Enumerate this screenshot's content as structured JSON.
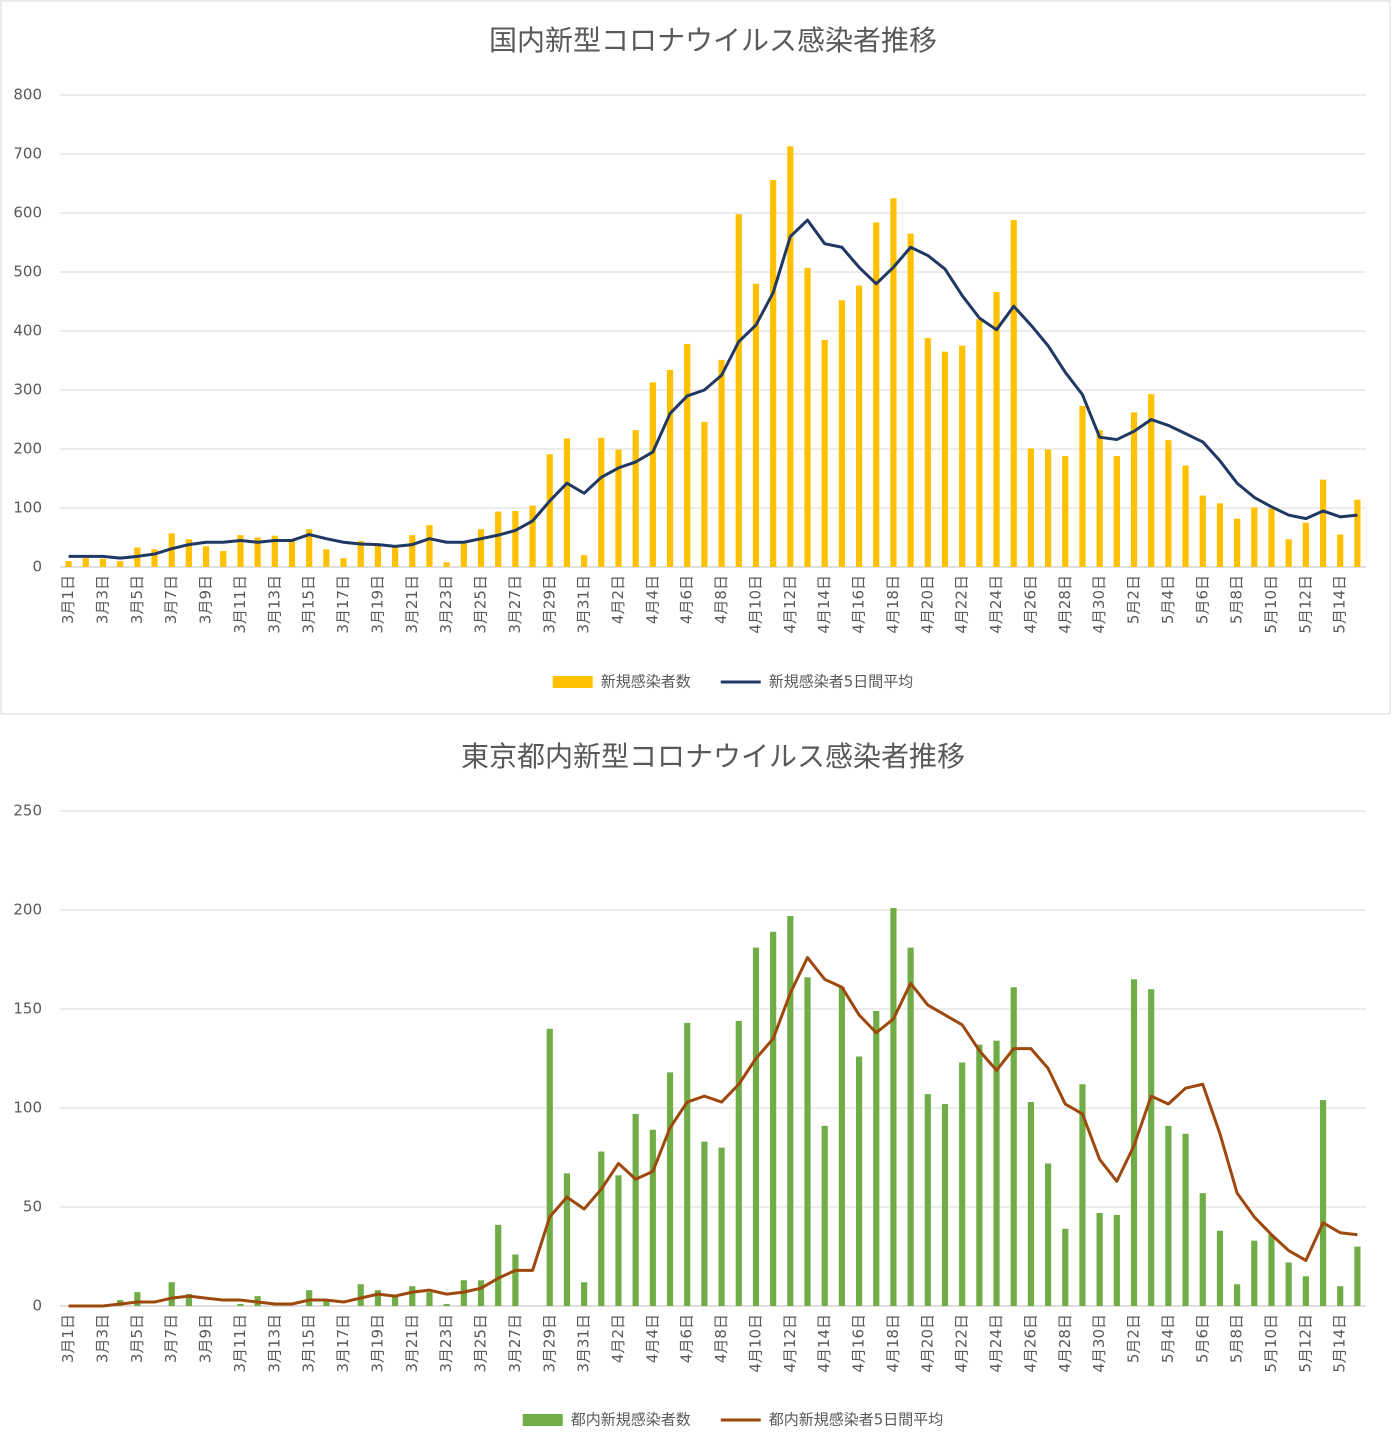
{
  "chart_data": [
    {
      "type": "bar",
      "title": "国内新型コロナウイルス感染者推移",
      "categories": [
        "3月1日",
        null,
        "3月3日",
        null,
        "3月5日",
        null,
        "3月7日",
        null,
        "3月9日",
        null,
        "3月11日",
        null,
        "3月13日",
        null,
        "3月15日",
        null,
        "3月17日",
        null,
        "3月19日",
        null,
        "3月21日",
        null,
        "3月23日",
        null,
        "3月25日",
        null,
        "3月27日",
        null,
        "3月29日",
        null,
        "3月31日",
        null,
        "4月2日",
        null,
        "4月4日",
        null,
        "4月6日",
        null,
        "4月8日",
        null,
        "4月10日",
        null,
        "4月12日",
        null,
        "4月14日",
        null,
        "4月16日",
        null,
        "4月18日",
        null,
        "4月20日",
        null,
        "4月22日",
        null,
        "4月24日",
        null,
        "4月26日",
        null,
        "4月28日",
        null,
        "4月30日",
        null,
        "5月2日",
        null,
        "5月4日",
        null,
        "5月6日",
        null,
        "5月8日",
        null,
        "5月10日",
        null,
        "5月12日",
        null,
        "5月14日",
        null
      ],
      "series": [
        {
          "name": "新規感染者数",
          "type": "bar",
          "color": "#FFC000",
          "values": [
            10,
            15,
            14,
            10,
            33,
            30,
            57,
            47,
            35,
            27,
            54,
            50,
            53,
            44,
            64,
            30,
            15,
            44,
            38,
            37,
            54,
            71,
            8,
            40,
            64,
            94,
            95,
            104,
            191,
            218,
            20,
            219,
            199,
            232,
            313,
            334,
            378,
            246,
            351,
            598,
            480,
            656,
            713,
            507,
            385,
            452,
            477,
            584,
            625,
            565,
            388,
            365,
            375,
            420,
            466,
            588,
            201,
            199,
            188,
            273,
            232,
            188,
            262,
            293,
            215,
            172,
            121,
            108,
            82,
            101,
            99,
            47,
            75,
            148,
            55,
            114
          ]
        },
        {
          "name": "新規感染者5日間平均",
          "type": "line",
          "color": "#203864",
          "values": [
            18,
            18,
            18,
            15,
            18,
            22,
            31,
            38,
            42,
            42,
            45,
            42,
            45,
            45,
            55,
            48,
            42,
            39,
            38,
            35,
            38,
            48,
            42,
            42,
            48,
            54,
            62,
            78,
            112,
            142,
            125,
            152,
            168,
            178,
            195,
            260,
            290,
            300,
            325,
            382,
            410,
            465,
            560,
            588,
            548,
            542,
            508,
            480,
            508,
            542,
            528,
            505,
            460,
            422,
            402,
            442,
            410,
            375,
            330,
            292,
            220,
            216,
            230,
            250,
            240,
            226,
            212,
            180,
            142,
            118,
            102,
            88,
            82,
            95,
            85,
            88
          ]
        }
      ],
      "ylim": [
        0,
        800
      ],
      "yticks": [
        0,
        100,
        200,
        300,
        400,
        500,
        600,
        700,
        800
      ],
      "grid": true,
      "legend": "bottom"
    },
    {
      "type": "bar",
      "title": "東京都内新型コロナウイルス感染者推移",
      "categories": [
        "3月1日",
        null,
        "3月3日",
        null,
        "3月5日",
        null,
        "3月7日",
        null,
        "3月9日",
        null,
        "3月11日",
        null,
        "3月13日",
        null,
        "3月15日",
        null,
        "3月17日",
        null,
        "3月19日",
        null,
        "3月21日",
        null,
        "3月23日",
        null,
        "3月25日",
        null,
        "3月27日",
        null,
        "3月29日",
        null,
        "3月31日",
        null,
        "4月2日",
        null,
        "4月4日",
        null,
        "4月6日",
        null,
        "4月8日",
        null,
        "4月10日",
        null,
        "4月12日",
        null,
        "4月14日",
        null,
        "4月16日",
        null,
        "4月18日",
        null,
        "4月20日",
        null,
        "4月22日",
        null,
        "4月24日",
        null,
        "4月26日",
        null,
        "4月28日",
        null,
        "4月30日",
        null,
        "5月2日",
        null,
        "5月4日",
        null,
        "5月6日",
        null,
        "5月8日",
        null,
        "5月10日",
        null,
        "5月12日",
        null,
        "5月14日",
        null
      ],
      "series": [
        {
          "name": "都内新規感染者数",
          "type": "bar",
          "color": "#70AD47",
          "values": [
            0,
            0,
            0,
            3,
            7,
            0,
            12,
            6,
            0,
            0,
            1,
            5,
            0,
            0,
            8,
            3,
            0,
            11,
            8,
            5,
            10,
            7,
            1,
            13,
            13,
            41,
            26,
            0,
            140,
            67,
            12,
            78,
            66,
            97,
            89,
            118,
            143,
            83,
            80,
            144,
            181,
            189,
            197,
            166,
            91,
            161,
            126,
            149,
            201,
            181,
            107,
            102,
            123,
            132,
            134,
            161,
            103,
            72,
            39,
            112,
            47,
            46,
            165,
            160,
            91,
            87,
            57,
            38,
            11,
            33,
            36,
            22,
            15,
            104,
            10,
            30
          ]
        },
        {
          "name": "都内新規感染者5日間平均",
          "type": "line",
          "color": "#9E480E",
          "values": [
            0,
            0,
            0,
            1,
            2,
            2,
            4,
            5,
            4,
            3,
            3,
            2,
            1,
            1,
            3,
            3,
            2,
            4,
            6,
            5,
            7,
            8,
            6,
            7,
            9,
            14,
            18,
            18,
            45,
            55,
            49,
            59,
            72,
            64,
            68,
            90,
            103,
            106,
            103,
            112,
            125,
            135,
            158,
            176,
            165,
            161,
            147,
            138,
            145,
            163,
            152,
            147,
            142,
            129,
            119,
            130,
            130,
            120,
            102,
            97,
            74,
            63,
            81,
            106,
            102,
            110,
            112,
            87,
            57,
            45,
            36,
            28,
            23,
            42,
            37,
            36
          ]
        }
      ],
      "ylim": [
        0,
        250
      ],
      "yticks": [
        0,
        50,
        100,
        150,
        200,
        250
      ],
      "grid": true,
      "legend": "bottom"
    }
  ]
}
